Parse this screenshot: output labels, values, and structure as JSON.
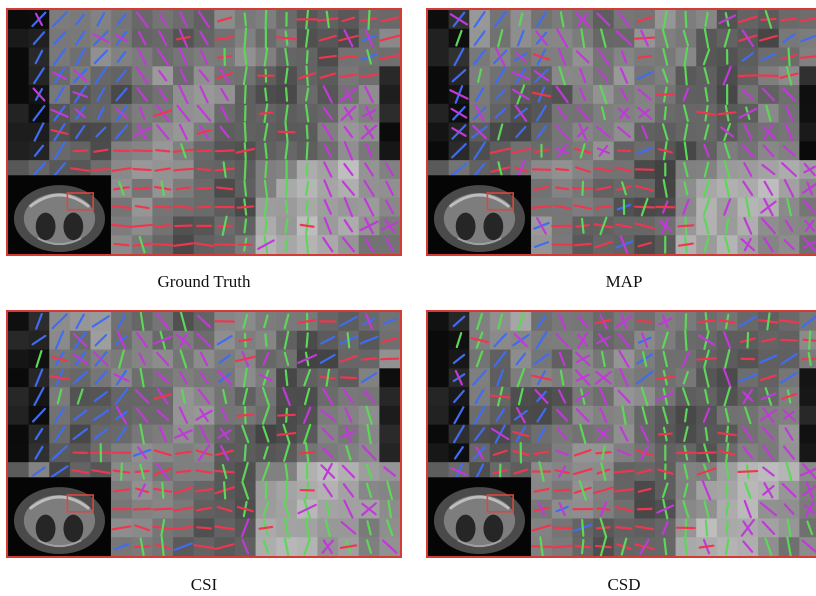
{
  "panels": [
    {
      "label": "Ground Truth",
      "variant": 0
    },
    {
      "label": "MAP",
      "variant": 1
    },
    {
      "label": "CSI",
      "variant": 2
    },
    {
      "label": "CSD",
      "variant": 3
    }
  ],
  "colors": {
    "frame": "#d63a35",
    "fiber_green": "#5ed65a",
    "fiber_blue": "#3f6cf2",
    "fiber_red": "#f0364f",
    "fiber_magenta": "#c03ad8",
    "fiber_purple": "#7a55f0",
    "inset_box": "#e0463c"
  }
}
